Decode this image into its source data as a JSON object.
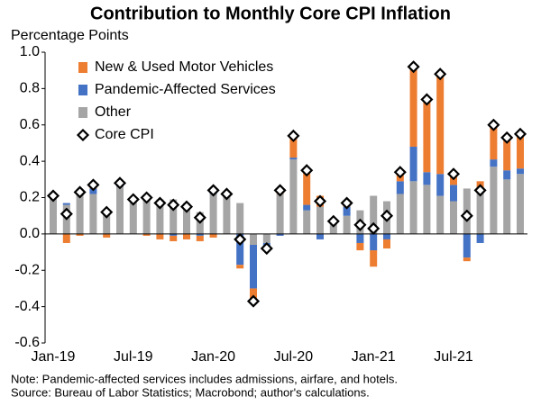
{
  "chart_data": {
    "type": "bar",
    "stacked": true,
    "title": "Contribution to Monthly Core CPI Inflation",
    "y_label": "Percentage Points",
    "notes": [
      "Note: Pandemic-affected services includes admissions, airfare, and hotels.",
      "Source: Bureau of Labor Statistics; Macrobond; author's calculations."
    ],
    "categories": [
      "Jan-19",
      null,
      null,
      null,
      null,
      null,
      "Jul-19",
      null,
      null,
      null,
      null,
      null,
      "Jan-20",
      null,
      null,
      null,
      null,
      null,
      "Jul-20",
      null,
      null,
      null,
      null,
      null,
      "Jan-21",
      null,
      null,
      null,
      null,
      null,
      "Jul-21",
      null,
      null,
      null,
      null,
      null
    ],
    "ylim": [
      -0.6,
      1
    ],
    "yticks": [
      {
        "value": 1,
        "label": "1.0"
      },
      0.8,
      0.6,
      0.4,
      0.2,
      {
        "value": 0,
        "label": "0.0"
      },
      -0.2,
      -0.4,
      -0.6
    ],
    "series": [
      {
        "name": "Other",
        "type": "bar",
        "color": "#a5a5a5",
        "values": [
          0.2,
          0.16,
          0.22,
          0.22,
          0.12,
          0.26,
          0.19,
          0.19,
          0.19,
          0.19,
          0.17,
          0.12,
          0.22,
          0.21,
          0.17,
          -0.06,
          -0.05,
          0.22,
          0.41,
          0.13,
          0.15,
          0.06,
          0.1,
          0.13,
          0.21,
          0.18,
          0.22,
          0.29,
          0.27,
          0.21,
          0.18,
          0.25,
          0.25,
          0.37,
          0.3,
          0.33
        ]
      },
      {
        "name": "Pandemic-Affected Services",
        "type": "bar",
        "color": "#4472c4",
        "values": [
          0,
          0.01,
          0,
          0.03,
          0,
          0.01,
          0,
          0.01,
          0,
          -0.01,
          0,
          -0.01,
          0.02,
          0,
          -0.17,
          -0.24,
          -0.02,
          -0.01,
          0.01,
          0.03,
          -0.03,
          0,
          0.05,
          -0.05,
          -0.09,
          -0.03,
          0.07,
          0.19,
          0.07,
          0.12,
          0.09,
          -0.13,
          -0.05,
          0.04,
          0.05,
          0.03
        ]
      },
      {
        "name": "New & Used Motor Vehicles",
        "type": "bar",
        "color": "#ed7d31",
        "values": [
          0,
          -0.05,
          -0.01,
          0.02,
          -0.02,
          0.01,
          0,
          -0.01,
          -0.03,
          -0.03,
          -0.03,
          -0.03,
          -0.02,
          0.01,
          -0.02,
          -0.07,
          -0.01,
          0.03,
          0.12,
          0.18,
          0.06,
          0.01,
          0.02,
          -0.04,
          -0.09,
          -0.05,
          0.05,
          0.44,
          0.4,
          0.55,
          0.06,
          -0.02,
          0.04,
          0.19,
          0.18,
          0.19
        ]
      },
      {
        "name": "Core CPI",
        "type": "scatter",
        "marker": "diamond",
        "color": "#000000",
        "values": [
          0.21,
          0.11,
          0.23,
          0.27,
          0.12,
          0.28,
          0.19,
          0.2,
          0.17,
          0.16,
          0.15,
          0.09,
          0.24,
          0.22,
          -0.03,
          -0.37,
          -0.08,
          0.24,
          0.54,
          0.35,
          0.18,
          0.07,
          0.17,
          0.05,
          0.03,
          0.1,
          0.34,
          0.92,
          0.74,
          0.88,
          0.33,
          0.1,
          0.24,
          0.6,
          0.53,
          0.55
        ]
      }
    ],
    "legend_order": [
      2,
      1,
      0,
      3
    ],
    "legend": "upper-left",
    "grid": false
  }
}
